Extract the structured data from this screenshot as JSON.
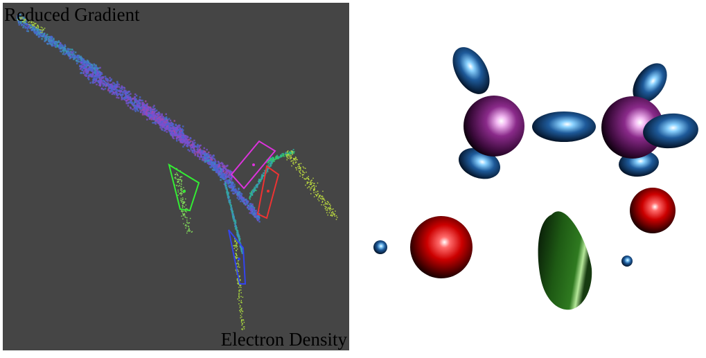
{
  "scatter_plot": {
    "y_axis_label": "Reduced Gradient",
    "x_axis_label": "Electron Density",
    "background_color": "#454545",
    "selection_colors": [
      "#33ee33",
      "#dd33dd",
      "#ee3333",
      "#3344ee"
    ]
  },
  "molecule_view": {
    "background_color": "#ffffff",
    "isosurface_colors": {
      "atom": "#8a2a8a",
      "blue_lobe": "#1e5a9a",
      "red_sphere": "#cc0000",
      "green_surface": "#1e5a14"
    }
  }
}
